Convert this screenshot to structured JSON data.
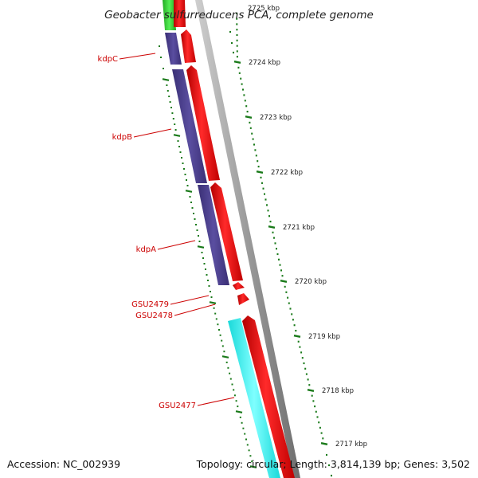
{
  "title": "Geobacter sulfurreducens PCA, complete genome",
  "footer": {
    "accession": "Accession: NC_002939",
    "summary": "Topology: circular; Length: 3,814,139 bp; Genes: 3,502"
  },
  "colors": {
    "forward_cds": "#ff0000",
    "reverse_cds_kdp": "#4b3f8f",
    "reverse_cds_cyan": "#00ffff",
    "reverse_cds_green": "#33cc33",
    "backbone": "#8a8a8a",
    "label": "#cc0000",
    "tick": "#1a7a1a"
  },
  "scale_ticks": [
    {
      "label": "2725 kbp",
      "faded": true
    },
    {
      "label": "2724 kbp"
    },
    {
      "label": "2723 kbp"
    },
    {
      "label": "2722 kbp"
    },
    {
      "label": "2721 kbp"
    },
    {
      "label": "2720 kbp"
    },
    {
      "label": "2719 kbp"
    },
    {
      "label": "2718 kbp"
    },
    {
      "label": "2717 kbp"
    }
  ],
  "gene_labels": [
    "kdpC",
    "kdpB",
    "kdpA",
    "GSU2479",
    "GSU2478",
    "GSU2477"
  ]
}
